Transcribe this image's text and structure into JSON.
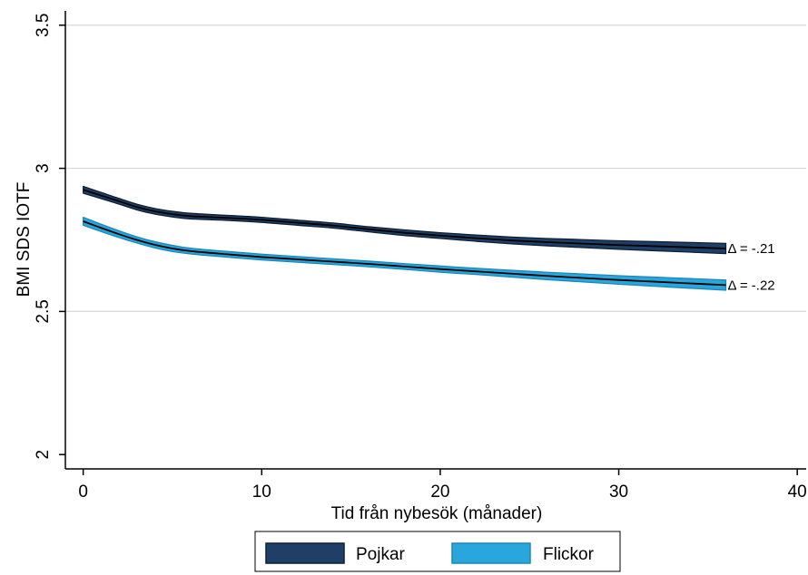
{
  "chart_data": {
    "type": "line",
    "xlabel": "Tid från nybesök (månader)",
    "ylabel": "BMI SDS IOTF",
    "xlim": [
      -1,
      40.5
    ],
    "ylim": [
      1.95,
      3.55
    ],
    "x_ticks": [
      0,
      10,
      20,
      30,
      40
    ],
    "x_tick_labels": [
      "0",
      "10",
      "20",
      "30",
      "40"
    ],
    "y_ticks": [
      2,
      2.5,
      3,
      3.5
    ],
    "y_tick_labels": [
      "2",
      "2.5",
      "3",
      "3.5"
    ],
    "grid": true,
    "legend_position": "bottom",
    "series": [
      {
        "name": "Pojkar",
        "color": "#1f3f66",
        "line_color": "#000000",
        "x": [
          0,
          1,
          2,
          3,
          4,
          5,
          6,
          8,
          10,
          12,
          14,
          16,
          18,
          20,
          22,
          24,
          26,
          28,
          30,
          32,
          34,
          36
        ],
        "y": [
          2.925,
          2.905,
          2.885,
          2.865,
          2.85,
          2.84,
          2.833,
          2.827,
          2.82,
          2.81,
          2.8,
          2.787,
          2.775,
          2.765,
          2.756,
          2.748,
          2.742,
          2.737,
          2.732,
          2.728,
          2.724,
          2.72
        ],
        "ci_half_width": [
          0.012,
          0.011,
          0.01,
          0.01,
          0.01,
          0.01,
          0.01,
          0.009,
          0.009,
          0.009,
          0.009,
          0.009,
          0.01,
          0.01,
          0.011,
          0.012,
          0.013,
          0.014,
          0.015,
          0.016,
          0.017,
          0.018
        ],
        "end_label": "Δ = -.21"
      },
      {
        "name": "Flickor",
        "color": "#29a6dc",
        "line_color": "#000000",
        "x": [
          0,
          1,
          2,
          3,
          4,
          5,
          6,
          8,
          10,
          12,
          14,
          16,
          18,
          20,
          22,
          24,
          26,
          28,
          30,
          32,
          34,
          36
        ],
        "y": [
          2.815,
          2.792,
          2.77,
          2.75,
          2.733,
          2.72,
          2.711,
          2.7,
          2.69,
          2.682,
          2.674,
          2.666,
          2.657,
          2.648,
          2.64,
          2.632,
          2.624,
          2.617,
          2.61,
          2.604,
          2.598,
          2.592
        ],
        "ci_half_width": [
          0.014,
          0.013,
          0.012,
          0.011,
          0.011,
          0.011,
          0.01,
          0.01,
          0.01,
          0.01,
          0.01,
          0.01,
          0.01,
          0.011,
          0.011,
          0.012,
          0.013,
          0.014,
          0.015,
          0.016,
          0.017,
          0.018
        ],
        "end_label": "Δ = -.22"
      }
    ]
  }
}
